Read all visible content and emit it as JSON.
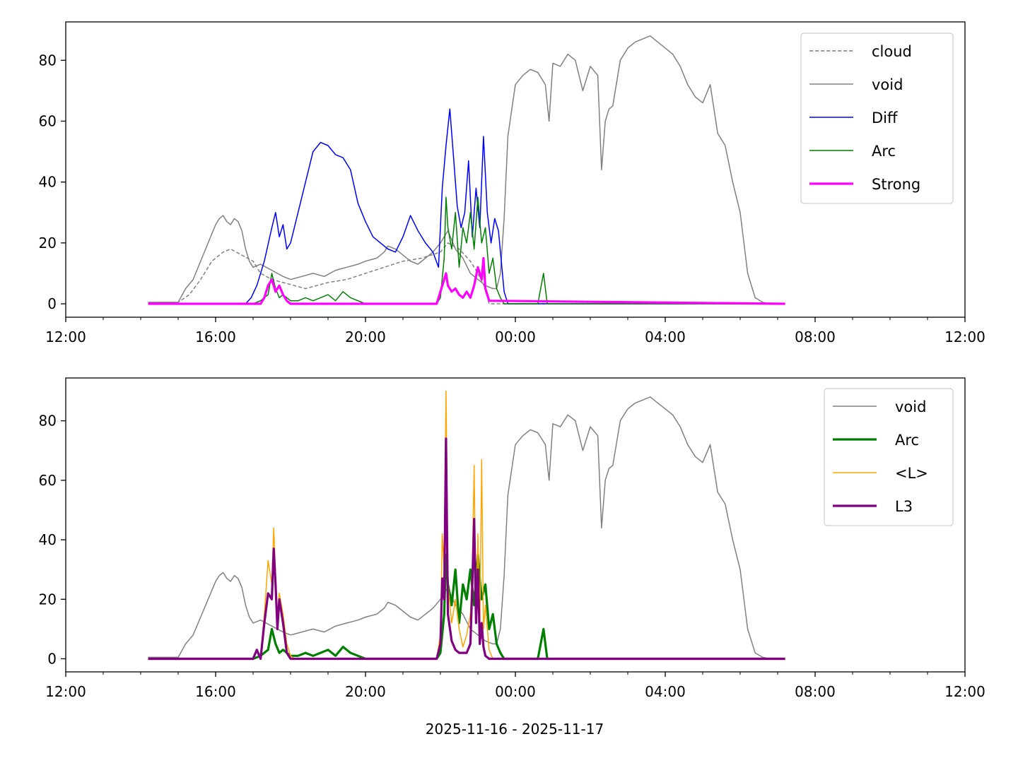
{
  "figure": {
    "xlabel": "2025-11-16 - 2025-11-17"
  },
  "chart_data": [
    {
      "type": "line",
      "title": "",
      "xlabel": "",
      "ylabel": "",
      "x_unit": "hours since 2025-11-16 00:00",
      "xlim": [
        12,
        36
      ],
      "ylim": [
        -4.4,
        92.6
      ],
      "x_ticks": [
        {
          "value": 12,
          "label": "12:00"
        },
        {
          "value": 16,
          "label": "16:00"
        },
        {
          "value": 20,
          "label": "20:00"
        },
        {
          "value": 24,
          "label": "00:00"
        },
        {
          "value": 28,
          "label": "04:00"
        },
        {
          "value": 32,
          "label": "08:00"
        },
        {
          "value": 36,
          "label": "12:00"
        }
      ],
      "x_minor_ticks": [
        13,
        14,
        15,
        17,
        18,
        19,
        21,
        22,
        23,
        25,
        26,
        27,
        29,
        30,
        31,
        33,
        34,
        35
      ],
      "y_ticks": [
        0,
        20,
        40,
        60,
        80
      ],
      "grid": false,
      "legend": {
        "position": "top-right"
      },
      "series": [
        {
          "name": "cloud",
          "color": "#808080",
          "style": "dashed",
          "width": 1.5,
          "legend": true,
          "x": [
            14.2,
            15.0,
            15.3,
            15.6,
            15.9,
            16.2,
            16.4,
            16.7,
            17.0,
            17.2,
            17.5,
            17.8,
            18.1,
            18.4,
            18.7,
            19.0,
            19.5,
            20.0,
            20.5,
            21.0,
            21.5,
            22.0,
            22.2,
            22.5,
            22.8,
            23.0,
            23.2,
            23.3,
            24.0,
            25.0,
            26.0,
            27.0,
            28.0,
            29.0,
            30.0,
            31.0,
            31.2
          ],
          "y": [
            0.5,
            0.5,
            3,
            8,
            14,
            17,
            18,
            16,
            14,
            10,
            8,
            7,
            6,
            5,
            6,
            7,
            8,
            10,
            12,
            14,
            15,
            17,
            20,
            18,
            14,
            10,
            5,
            0,
            0,
            0,
            0,
            0,
            0,
            0,
            0,
            0,
            0
          ]
        },
        {
          "name": "void",
          "color": "#808080",
          "style": "solid",
          "width": 1.5,
          "legend": true,
          "ref": "void"
        },
        {
          "name": "Diff",
          "color": "#0000ff",
          "style": "solid",
          "width": 1.5,
          "legend": true,
          "x": [
            14.2,
            16.8,
            16.95,
            17.1,
            17.3,
            17.5,
            17.6,
            17.7,
            17.8,
            17.9,
            18.0,
            18.2,
            18.4,
            18.6,
            18.8,
            19.0,
            19.2,
            19.4,
            19.6,
            19.8,
            20.0,
            20.2,
            20.4,
            20.6,
            20.8,
            21.0,
            21.2,
            21.4,
            21.6,
            21.8,
            21.95,
            22.05,
            22.15,
            22.25,
            22.35,
            22.45,
            22.55,
            22.65,
            22.75,
            22.85,
            22.95,
            23.05,
            23.15,
            23.25,
            23.35,
            23.45,
            23.55,
            23.7,
            23.8,
            30.0,
            31.2
          ],
          "y": [
            0,
            0,
            2,
            6,
            14,
            25,
            30,
            22,
            26,
            18,
            20,
            30,
            40,
            50,
            53,
            52,
            49,
            48,
            44,
            33,
            27,
            22,
            20,
            18,
            17,
            22,
            29,
            24,
            20,
            17,
            12,
            38,
            52,
            64,
            48,
            32,
            25,
            30,
            47,
            22,
            38,
            25,
            55,
            30,
            20,
            28,
            24,
            4,
            0,
            0,
            0
          ]
        },
        {
          "name": "Arc",
          "color": "#008000",
          "style": "solid",
          "width": 1.5,
          "legend": true,
          "ref": "arc"
        },
        {
          "name": "Strong",
          "color": "#ff00ff",
          "style": "solid",
          "width": 3.2,
          "legend": true,
          "ref": "strong"
        }
      ]
    },
    {
      "type": "line",
      "title": "",
      "xlabel": "2025-11-16 - 2025-11-17",
      "ylabel": "",
      "x_unit": "hours since 2025-11-16 00:00",
      "xlim": [
        12,
        36
      ],
      "ylim": [
        -4.4,
        94.4
      ],
      "x_ticks": [
        {
          "value": 12,
          "label": "12:00"
        },
        {
          "value": 16,
          "label": "16:00"
        },
        {
          "value": 20,
          "label": "20:00"
        },
        {
          "value": 24,
          "label": "00:00"
        },
        {
          "value": 28,
          "label": "04:00"
        },
        {
          "value": 32,
          "label": "08:00"
        },
        {
          "value": 36,
          "label": "12:00"
        }
      ],
      "x_minor_ticks": [
        13,
        14,
        15,
        17,
        18,
        19,
        21,
        22,
        23,
        25,
        26,
        27,
        29,
        30,
        31,
        33,
        34,
        35
      ],
      "y_ticks": [
        0,
        20,
        40,
        60,
        80
      ],
      "grid": false,
      "legend": {
        "position": "top-right"
      },
      "series": [
        {
          "name": "void",
          "color": "#808080",
          "style": "solid",
          "width": 1.5,
          "legend": true,
          "ref": "void"
        },
        {
          "name": "Arc",
          "color": "#008000",
          "style": "solid",
          "width": 3.2,
          "legend": true,
          "ref": "arc"
        },
        {
          "name": "<L>",
          "color": "#ffa500",
          "style": "solid",
          "width": 1.5,
          "legend": true,
          "x": [
            14.2,
            17.0,
            17.1,
            17.2,
            17.3,
            17.4,
            17.5,
            17.55,
            17.6,
            17.65,
            17.7,
            17.8,
            17.9,
            18.0,
            18.1,
            18.5,
            21.9,
            22.0,
            22.05,
            22.1,
            22.15,
            22.2,
            22.3,
            22.4,
            22.5,
            22.6,
            22.7,
            22.8,
            22.85,
            22.9,
            22.95,
            23.0,
            23.05,
            23.1,
            23.15,
            23.2,
            23.3,
            23.4,
            23.6,
            31.2
          ],
          "y": [
            0,
            0,
            3,
            1,
            15,
            33,
            25,
            44,
            28,
            15,
            22,
            15,
            5,
            1,
            0,
            0,
            0,
            8,
            42,
            30,
            90,
            25,
            12,
            20,
            10,
            4,
            8,
            15,
            30,
            65,
            12,
            42,
            8,
            67,
            10,
            18,
            3,
            0,
            0,
            0
          ]
        },
        {
          "name": "L3",
          "color": "#800080",
          "style": "solid",
          "width": 3.2,
          "legend": true,
          "x": [
            14.2,
            17.0,
            17.1,
            17.2,
            17.3,
            17.4,
            17.5,
            17.55,
            17.6,
            17.65,
            17.7,
            17.8,
            17.9,
            18.0,
            21.9,
            22.0,
            22.05,
            22.1,
            22.15,
            22.2,
            22.3,
            22.4,
            22.5,
            22.7,
            22.8,
            22.85,
            22.9,
            22.95,
            23.0,
            23.05,
            23.1,
            23.15,
            23.2,
            23.3,
            31.2
          ],
          "y": [
            0,
            0,
            3,
            0,
            12,
            22,
            20,
            37,
            25,
            10,
            20,
            12,
            2,
            0,
            0,
            5,
            27,
            20,
            74,
            15,
            6,
            3,
            2,
            2,
            5,
            25,
            47,
            12,
            30,
            5,
            12,
            4,
            1,
            0,
            0
          ]
        }
      ]
    }
  ],
  "shared_series": {
    "void": {
      "x": [
        14.2,
        14.5,
        15.0,
        15.2,
        15.4,
        15.6,
        15.8,
        16.0,
        16.1,
        16.2,
        16.3,
        16.4,
        16.5,
        16.6,
        16.7,
        16.8,
        16.9,
        17.0,
        17.2,
        17.5,
        17.8,
        18.0,
        18.3,
        18.6,
        18.9,
        19.2,
        19.5,
        19.8,
        20.0,
        20.3,
        20.5,
        20.6,
        20.8,
        21.0,
        21.2,
        21.4,
        21.6,
        21.8,
        22.0,
        22.2,
        22.4,
        22.6,
        22.8,
        23.0,
        23.2,
        23.4,
        23.5,
        23.6,
        23.7,
        23.8,
        24.0,
        24.2,
        24.4,
        24.6,
        24.8,
        24.9,
        25.0,
        25.2,
        25.4,
        25.6,
        25.8,
        26.0,
        26.2,
        26.3,
        26.4,
        26.5,
        26.6,
        26.8,
        27.0,
        27.2,
        27.4,
        27.6,
        27.8,
        28.0,
        28.2,
        28.4,
        28.6,
        28.8,
        29.0,
        29.2,
        29.4,
        29.6,
        29.8,
        30.0,
        30.2,
        30.4,
        30.6,
        30.8,
        31.0,
        31.2
      ],
      "y": [
        0.5,
        0.5,
        0.5,
        5,
        8,
        14,
        20,
        26,
        28,
        29,
        27,
        26,
        28,
        27,
        24,
        18,
        14,
        12,
        13,
        11,
        9,
        8,
        9,
        10,
        9,
        11,
        12,
        13,
        14,
        15,
        17,
        19,
        18,
        16,
        14,
        13,
        15,
        17,
        20,
        24,
        18,
        15,
        10,
        8,
        6,
        5,
        5,
        10,
        28,
        55,
        72,
        75,
        77,
        76,
        72,
        60,
        79,
        78,
        82,
        80,
        70,
        78,
        75,
        44,
        60,
        64,
        65,
        80,
        84,
        86,
        87,
        88,
        86,
        84,
        82,
        78,
        72,
        68,
        66,
        72,
        56,
        52,
        40,
        30,
        10,
        2,
        0.5,
        0,
        0,
        0
      ]
    },
    "arc": {
      "x": [
        14.2,
        17.0,
        17.2,
        17.4,
        17.5,
        17.6,
        17.7,
        17.8,
        17.9,
        18.0,
        18.2,
        18.4,
        18.6,
        18.8,
        19.0,
        19.2,
        19.4,
        19.6,
        19.8,
        20.0,
        21.9,
        22.0,
        22.1,
        22.15,
        22.2,
        22.3,
        22.4,
        22.5,
        22.6,
        22.7,
        22.8,
        22.9,
        23.0,
        23.1,
        23.2,
        23.3,
        23.4,
        23.5,
        23.6,
        23.7,
        24.6,
        24.75,
        24.85,
        25.0,
        31.2
      ],
      "y": [
        0,
        0,
        1,
        3,
        10,
        5,
        2,
        3,
        2,
        1,
        1,
        2,
        1,
        2,
        3,
        1,
        4,
        2,
        1,
        0,
        0,
        2,
        15,
        35,
        25,
        18,
        30,
        12,
        25,
        20,
        30,
        18,
        35,
        20,
        25,
        10,
        15,
        5,
        2,
        0,
        0,
        10,
        0,
        0,
        0
      ]
    },
    "strong": {
      "x": [
        14.2,
        17.2,
        17.3,
        17.4,
        17.5,
        17.6,
        17.7,
        17.8,
        17.9,
        18.0,
        21.9,
        22.0,
        22.1,
        22.15,
        22.2,
        22.3,
        22.4,
        22.5,
        22.6,
        22.7,
        22.8,
        22.9,
        23.0,
        23.1,
        23.15,
        23.2,
        23.3,
        31.2
      ],
      "y": [
        0,
        0,
        2,
        6,
        8,
        4,
        6,
        3,
        1,
        0,
        0,
        4,
        8,
        10,
        6,
        4,
        5,
        3,
        2,
        4,
        2,
        6,
        12,
        8,
        15,
        5,
        1,
        0
      ]
    }
  }
}
